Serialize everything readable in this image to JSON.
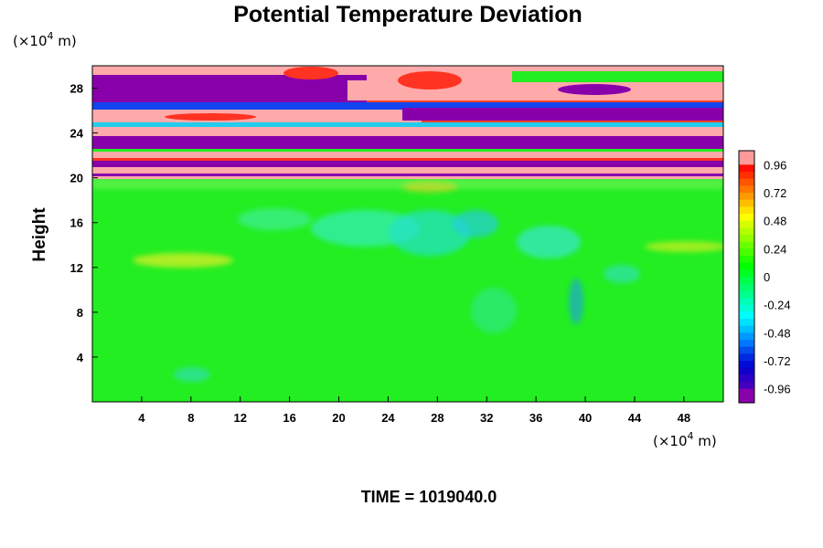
{
  "chart_data": {
    "type": "heatmap",
    "title": "Potential Temperature Deviation",
    "ylabel": "Height",
    "y_unit_prefix": "(×10",
    "y_unit_exp": "4",
    "y_unit_suffix": " m)",
    "x_unit_prefix": "(×10",
    "x_unit_exp": "4",
    "x_unit_suffix": " m)",
    "x_ticks": [
      "4",
      "8",
      "12",
      "16",
      "20",
      "24",
      "28",
      "32",
      "36",
      "40",
      "44",
      "48"
    ],
    "x_tick_values": [
      4,
      8,
      12,
      16,
      20,
      24,
      28,
      32,
      36,
      40,
      44,
      48
    ],
    "y_ticks": [
      "4",
      "8",
      "12",
      "16",
      "20",
      "24",
      "28"
    ],
    "y_tick_values": [
      4,
      8,
      12,
      16,
      20,
      24,
      28
    ],
    "xlim": [
      0,
      51.2
    ],
    "ylim": [
      0,
      30
    ],
    "colorbar": {
      "labels": [
        "0.96",
        "0.72",
        "0.48",
        "0.24",
        "0",
        "-0.24",
        "-0.48",
        "-0.72",
        "-0.96"
      ],
      "values": [
        0.96,
        0.72,
        0.48,
        0.24,
        0,
        -0.24,
        -0.48,
        -0.72,
        -0.96
      ],
      "range": [
        -1.08,
        1.08
      ]
    },
    "time_label": "TIME = 1019040.0"
  }
}
